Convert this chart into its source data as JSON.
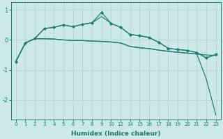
{
  "bg_color": "#cce8e8",
  "grid_color": "#b5d5d5",
  "line_color": "#1a7a6e",
  "xlabel": "Humidex (Indice chaleur)",
  "xtick_labels": [
    "0",
    "1",
    "2",
    "3",
    "4",
    "5",
    "6",
    "7",
    "8",
    "9",
    "10",
    "12",
    "14",
    "15",
    "16",
    "17",
    "18",
    "19",
    "20",
    "21",
    "22",
    "23"
  ],
  "ylim": [
    -2.65,
    1.25
  ],
  "yticks": [
    -2,
    -1,
    0,
    1
  ],
  "n_xpoints": 22,
  "curve_marked": {
    "xi": [
      0,
      1,
      2,
      3,
      4,
      5,
      6,
      7,
      8,
      9,
      10,
      11,
      12,
      13,
      14,
      15,
      16,
      17,
      18,
      19,
      20,
      21
    ],
    "y": [
      -0.72,
      -0.1,
      0.05,
      0.38,
      0.42,
      0.5,
      0.44,
      0.52,
      0.57,
      0.92,
      0.55,
      0.42,
      0.18,
      0.14,
      0.08,
      -0.08,
      -0.28,
      -0.32,
      -0.35,
      -0.42,
      -0.6,
      -0.48
    ]
  },
  "curve_smooth": {
    "xi": [
      0,
      1,
      2,
      3,
      4,
      5,
      6,
      7,
      8,
      9,
      10,
      11,
      12,
      13,
      14,
      15,
      16,
      17,
      18,
      19,
      20,
      21
    ],
    "y": [
      -0.72,
      -0.1,
      0.05,
      0.38,
      0.42,
      0.5,
      0.44,
      0.52,
      0.57,
      0.78,
      0.55,
      0.42,
      0.18,
      0.14,
      0.08,
      -0.08,
      -0.28,
      -0.32,
      -0.35,
      -0.42,
      -0.6,
      -0.48
    ]
  },
  "curve_flat": {
    "xi": [
      0,
      1,
      2,
      3,
      4,
      5,
      6,
      7,
      8,
      9,
      10,
      11,
      12,
      13,
      14,
      15,
      16,
      17,
      18,
      19,
      20,
      21
    ],
    "y": [
      -0.72,
      -0.1,
      0.04,
      0.04,
      0.03,
      0.0,
      -0.02,
      -0.02,
      -0.04,
      -0.05,
      -0.07,
      -0.1,
      -0.22,
      -0.26,
      -0.29,
      -0.34,
      -0.38,
      -0.41,
      -0.44,
      -0.47,
      -0.5,
      -0.52
    ]
  },
  "curve_drop": {
    "xi": [
      0,
      1,
      2,
      3,
      4,
      5,
      6,
      7,
      8,
      9,
      10,
      11,
      12,
      13,
      14,
      15,
      16,
      17,
      18,
      19,
      20,
      21
    ],
    "y": [
      -0.72,
      -0.1,
      0.04,
      0.04,
      0.03,
      0.0,
      -0.02,
      -0.02,
      -0.04,
      -0.05,
      -0.07,
      -0.1,
      -0.22,
      -0.26,
      -0.29,
      -0.34,
      -0.38,
      -0.41,
      -0.44,
      -0.47,
      -1.3,
      -2.5
    ]
  }
}
